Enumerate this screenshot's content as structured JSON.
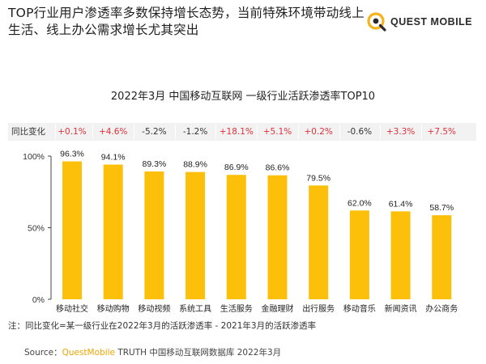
{
  "header": {
    "headline": "TOP行业用户渗透率多数保持增长态势，当前特殊环境带动线上生活、线上办公需求增长尤其突出",
    "brand": "QUEST MOBILE"
  },
  "change_row": {
    "label": "同比变化",
    "values": [
      "+0.1%",
      "+4.6%",
      "-5.2%",
      "-1.2%",
      "+18.1%",
      "+5.1%",
      "+0.2%",
      "-0.6%",
      "+3.3%",
      "+7.5%"
    ]
  },
  "note": "注：同比变化=某一级行业在2022年3月的活跃渗透率 - 2021年3月的活跃渗透率",
  "source": {
    "prefix": "Source：",
    "brand": "QuestMobile",
    "rest": " TRUTH 中国移动互联网数据库 2022年3月"
  },
  "colors": {
    "bar": "#fcbf0a",
    "positive": "#e0313a",
    "negative": "#333333",
    "axis": "#444444"
  },
  "chart_data": {
    "type": "bar",
    "title": "2022年3月 中国移动互联网 一级行业活跃渗透率TOP10",
    "categories": [
      "移动社交",
      "移动购物",
      "移动视频",
      "系统工具",
      "生活服务",
      "金融理财",
      "出行服务",
      "移动音乐",
      "新闻资讯",
      "办公商务"
    ],
    "values": [
      96.3,
      94.1,
      89.3,
      88.9,
      86.9,
      86.6,
      79.5,
      62.0,
      61.4,
      58.7
    ],
    "data_labels": [
      "96.3%",
      "94.1%",
      "89.3%",
      "88.9%",
      "86.9%",
      "86.6%",
      "79.5%",
      "62.0%",
      "61.4%",
      "58.7%"
    ],
    "yticks": [
      0,
      50,
      100
    ],
    "ytick_labels": [
      "0%",
      "50%",
      "100%"
    ],
    "ylim": [
      0,
      100
    ],
    "grid": false
  }
}
